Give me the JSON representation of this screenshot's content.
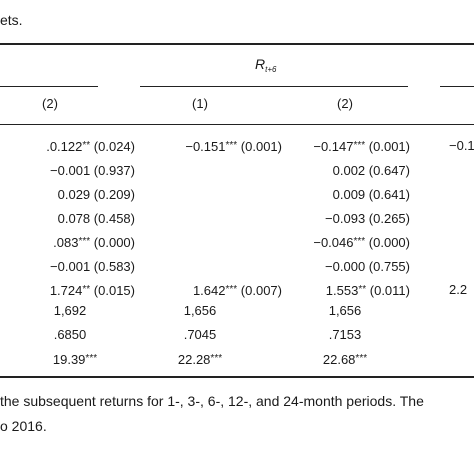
{
  "caption_tail": "ets.",
  "panel_header": {
    "var": "R",
    "sub": "t+6"
  },
  "col_headers": [
    "(2)",
    "(1)",
    "(2)"
  ],
  "rows": [
    {
      "c0": ".0.122",
      "c0s": "**",
      "c0p": "(0.024)",
      "c1": "−0.151",
      "c1s": "***",
      "c1p": "(0.001)",
      "c2": "−0.147",
      "c2s": "***",
      "c2p": "(0.001)",
      "c3": "−0.1"
    },
    {
      "c0": "−0.001",
      "c0s": "",
      "c0p": "(0.937)",
      "c1": "",
      "c1s": "",
      "c1p": "",
      "c2": "0.002",
      "c2s": "",
      "c2p": "(0.647)",
      "c3": ""
    },
    {
      "c0": "0.029",
      "c0s": "",
      "c0p": "(0.209)",
      "c1": "",
      "c1s": "",
      "c1p": "",
      "c2": "0.009",
      "c2s": "",
      "c2p": "(0.641)",
      "c3": ""
    },
    {
      "c0": "0.078",
      "c0s": "",
      "c0p": "(0.458)",
      "c1": "",
      "c1s": "",
      "c1p": "",
      "c2": "−0.093",
      "c2s": "",
      "c2p": "(0.265)",
      "c3": ""
    },
    {
      "c0": ".083",
      "c0s": "***",
      "c0p": "(0.000)",
      "c1": "",
      "c1s": "",
      "c1p": "",
      "c2": "−0.046",
      "c2s": "***",
      "c2p": "(0.000)",
      "c3": ""
    },
    {
      "c0": "−0.001",
      "c0s": "",
      "c0p": "(0.583)",
      "c1": "",
      "c1s": "",
      "c1p": "",
      "c2": "−0.000",
      "c2s": "",
      "c2p": "(0.755)",
      "c3": ""
    },
    {
      "c0": "1.724",
      "c0s": "**",
      "c0p": "(0.015)",
      "c1": "1.642",
      "c1s": "***",
      "c1p": "(0.007)",
      "c2": "1.553",
      "c2s": "**",
      "c2p": "(0.011)",
      "c3": "2.2"
    }
  ],
  "n_row": [
    "1,692",
    "1,656",
    "1,656"
  ],
  "r2_row": [
    ".6850",
    ".7045",
    ".7153"
  ],
  "f_row": [
    {
      "v": "19.39",
      "s": "***"
    },
    {
      "v": "22.28",
      "s": "***"
    },
    {
      "v": "22.68",
      "s": "***"
    }
  ],
  "note_line1": "the subsequent returns for 1-, 3-, 6-, 12-, and 24-month periods. The",
  "note_line2": "o 2016."
}
